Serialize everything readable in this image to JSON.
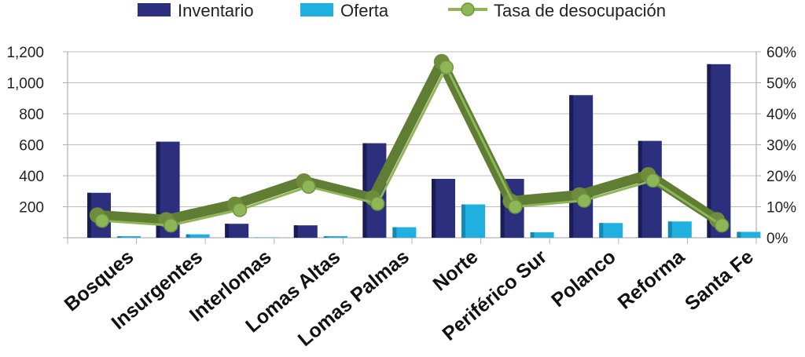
{
  "chart_data": {
    "type": "bar",
    "categories": [
      "Bosques",
      "Insurgentes",
      "Interlomas",
      "Lomas Altas",
      "Lomas Palmas",
      "Norte",
      "Periférico Sur",
      "Polanco",
      "Reforma",
      "Santa Fe"
    ],
    "series": [
      {
        "name": "Inventario",
        "type": "bar",
        "axis": "left",
        "color": "#2b2f7e",
        "values": [
          290,
          620,
          90,
          80,
          610,
          380,
          380,
          920,
          625,
          1120
        ]
      },
      {
        "name": "Oferta",
        "type": "bar",
        "axis": "left",
        "color": "#1fb0e0",
        "values": [
          10,
          22,
          2,
          10,
          68,
          215,
          35,
          95,
          105,
          38
        ]
      },
      {
        "name": "Tasa de desocupación",
        "type": "line",
        "axis": "right",
        "color": "#8eb556",
        "values": [
          5.5,
          4.0,
          9.0,
          16.5,
          11.0,
          55.0,
          10.0,
          12.0,
          18.5,
          4.0
        ]
      }
    ],
    "yticks_left": [
      "200",
      "400",
      "600",
      "800",
      "1,000",
      "1,200"
    ],
    "yticks_right": [
      "0%",
      "10%",
      "20%",
      "30%",
      "40%",
      "50%",
      "60%"
    ],
    "ylim_left": [
      0,
      1200
    ],
    "ylim_right": [
      0,
      60
    ],
    "grid": true,
    "legend": "top"
  }
}
